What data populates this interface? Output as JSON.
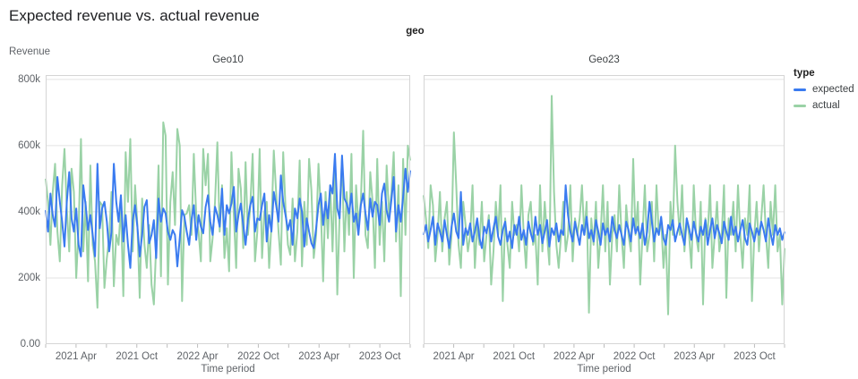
{
  "title": "Expected revenue vs. actual revenue",
  "facet_field_label": "geo",
  "legend": {
    "title": "type",
    "items": [
      {
        "label": "expected",
        "color": "#3a7bf0"
      },
      {
        "label": "actual",
        "color": "#9ad2a6"
      }
    ]
  },
  "chart_data": {
    "type": "line",
    "title": "Expected revenue vs. actual revenue",
    "facet_field": "geo",
    "facets": [
      "Geo10",
      "Geo23"
    ],
    "legend_position": "right",
    "grid": true,
    "x": {
      "label": "Time period",
      "start": "2021 Jan",
      "end": "2023 Dec",
      "frequency": "weekly",
      "points_per_series": 156,
      "tick_labels": [
        "2021 Apr",
        "2021 Oct",
        "2022 Apr",
        "2022 Oct",
        "2023 Apr",
        "2023 Oct"
      ],
      "tick_label_months": [
        3,
        9,
        15,
        21,
        27,
        33
      ],
      "minor_tick_months": [
        0,
        3,
        6,
        9,
        12,
        15,
        18,
        21,
        24,
        27,
        30,
        33,
        36
      ]
    },
    "y": {
      "label": "Revenue",
      "unit": "thousands (k)",
      "lim": [
        0,
        800
      ],
      "ticks": [
        {
          "v": 0,
          "label": "0.00"
        },
        {
          "v": 200,
          "label": "200k"
        },
        {
          "v": 400,
          "label": "400k"
        },
        {
          "v": 600,
          "label": "600k"
        },
        {
          "v": 800,
          "label": "800k"
        }
      ]
    },
    "series": [
      {
        "facet": "Geo10",
        "name": "expected",
        "color": "#3a7bf0",
        "values": [
          405,
          340,
          455,
          390,
          355,
          505,
          430,
          370,
          295,
          430,
          520,
          380,
          340,
          410,
          300,
          265,
          480,
          420,
          345,
          390,
          330,
          265,
          545,
          350,
          410,
          430,
          370,
          280,
          340,
          545,
          430,
          370,
          450,
          310,
          390,
          300,
          230,
          375,
          420,
          355,
          265,
          330,
          415,
          435,
          305,
          330,
          375,
          260,
          440,
          370,
          410,
          395,
          340,
          315,
          345,
          330,
          235,
          320,
          405,
          385,
          340,
          300,
          375,
          420,
          315,
          390,
          355,
          335,
          415,
          450,
          370,
          330,
          415,
          390,
          355,
          470,
          330,
          420,
          395,
          425,
          475,
          340,
          390,
          425,
          360,
          300,
          375,
          420,
          445,
          340,
          380,
          375,
          420,
          455,
          310,
          390,
          340,
          460,
          420,
          370,
          510,
          430,
          390,
          345,
          375,
          300,
          410,
          380,
          440,
          400,
          295,
          380,
          340,
          305,
          290,
          350,
          420,
          455,
          360,
          430,
          380,
          480,
          455,
          575,
          410,
          380,
          570,
          440,
          425,
          395,
          455,
          370,
          395,
          330,
          420,
          455,
          395,
          345,
          440,
          385,
          430,
          420,
          360,
          455,
          485,
          405,
          370,
          435,
          505,
          340,
          420,
          370,
          445,
          530,
          460,
          525
        ]
      },
      {
        "facet": "Geo10",
        "name": "actual",
        "color": "#9ad2a6",
        "values": [
          500,
          430,
          300,
          460,
          545,
          340,
          250,
          480,
          590,
          410,
          280,
          530,
          460,
          200,
          350,
          620,
          280,
          430,
          190,
          540,
          300,
          250,
          110,
          430,
          420,
          170,
          260,
          320,
          460,
          175,
          330,
          300,
          420,
          145,
          580,
          430,
          620,
          280,
          480,
          360,
          140,
          440,
          300,
          230,
          360,
          180,
          120,
          300,
          540,
          205,
          670,
          630,
          180,
          430,
          520,
          360,
          650,
          600,
          130,
          390,
          395,
          420,
          330,
          575,
          390,
          340,
          250,
          590,
          480,
          575,
          250,
          320,
          430,
          610,
          340,
          480,
          260,
          350,
          220,
          580,
          390,
          230,
          530,
          470,
          290,
          550,
          330,
          415,
          575,
          250,
          340,
          590,
          260,
          400,
          430,
          230,
          360,
          585,
          460,
          340,
          240,
          580,
          410,
          300,
          270,
          440,
          250,
          340,
          555,
          235,
          430,
          300,
          560,
          465,
          260,
          330,
          545,
          410,
          190,
          460,
          320,
          480,
          280,
          520,
          150,
          390,
          560,
          280,
          460,
          330,
          575,
          200,
          480,
          360,
          430,
          645,
          330,
          290,
          520,
          430,
          230,
          560,
          300,
          430,
          250,
          540,
          390,
          455,
          580,
          310,
          480,
          145,
          560,
          330,
          600,
          555
        ]
      },
      {
        "facet": "Geo23",
        "name": "expected",
        "color": "#3a7bf0",
        "values": [
          330,
          360,
          310,
          345,
          385,
          300,
          365,
          340,
          310,
          375,
          330,
          290,
          355,
          395,
          340,
          320,
          460,
          300,
          350,
          330,
          365,
          310,
          340,
          380,
          320,
          290,
          355,
          335,
          375,
          310,
          350,
          385,
          325,
          300,
          345,
          370,
          310,
          340,
          290,
          360,
          330,
          385,
          315,
          345,
          300,
          370,
          335,
          310,
          385,
          330,
          360,
          305,
          340,
          375,
          295,
          350,
          330,
          365,
          310,
          345,
          330,
          480,
          390,
          340,
          310,
          370,
          335,
          300,
          360,
          330,
          385,
          320,
          345,
          310,
          375,
          340,
          300,
          365,
          330,
          350,
          310,
          385,
          345,
          320,
          360,
          330,
          300,
          370,
          345,
          310,
          380,
          335,
          355,
          320,
          365,
          300,
          340,
          430,
          370,
          310,
          350,
          330,
          385,
          320,
          300,
          360,
          345,
          375,
          310,
          340,
          365,
          330,
          300,
          380,
          350,
          315,
          370,
          335,
          310,
          355,
          330,
          375,
          300,
          345,
          380,
          320,
          360,
          335,
          305,
          370,
          340,
          315,
          385,
          330,
          355,
          310,
          345,
          375,
          320,
          300,
          365,
          340,
          310,
          350,
          330,
          370,
          345,
          310,
          380,
          335,
          300,
          360,
          330,
          350,
          315,
          340
        ]
      },
      {
        "facet": "Geo23",
        "name": "actual",
        "color": "#9ad2a6",
        "values": [
          450,
          380,
          290,
          480,
          420,
          250,
          330,
          460,
          280,
          380,
          430,
          240,
          330,
          640,
          480,
          300,
          230,
          430,
          360,
          280,
          330,
          480,
          230,
          360,
          300,
          430,
          250,
          330,
          390,
          180,
          280,
          430,
          330,
          480,
          130,
          380,
          300,
          230,
          430,
          330,
          360,
          280,
          480,
          330,
          230,
          390,
          430,
          300,
          330,
          180,
          480,
          280,
          430,
          330,
          240,
          750,
          460,
          300,
          230,
          330,
          430,
          280,
          330,
          480,
          250,
          380,
          330,
          380,
          480,
          330,
          430,
          95,
          380,
          300,
          430,
          230,
          330,
          480,
          280,
          430,
          180,
          330,
          390,
          280,
          480,
          330,
          230,
          420,
          330,
          280,
          560,
          330,
          430,
          180,
          330,
          480,
          280,
          330,
          430,
          250,
          480,
          330,
          380,
          230,
          330,
          90,
          430,
          330,
          600,
          430,
          330,
          480,
          280,
          380,
          330,
          230,
          480,
          330,
          280,
          430,
          120,
          380,
          330,
          480,
          230,
          330,
          430,
          280,
          330,
          480,
          140,
          380,
          330,
          430,
          280,
          480,
          330,
          230,
          380,
          330,
          480,
          130,
          330,
          430,
          280,
          380,
          480,
          330,
          230,
          430,
          330,
          480,
          280,
          330,
          120,
          290
        ]
      }
    ]
  }
}
